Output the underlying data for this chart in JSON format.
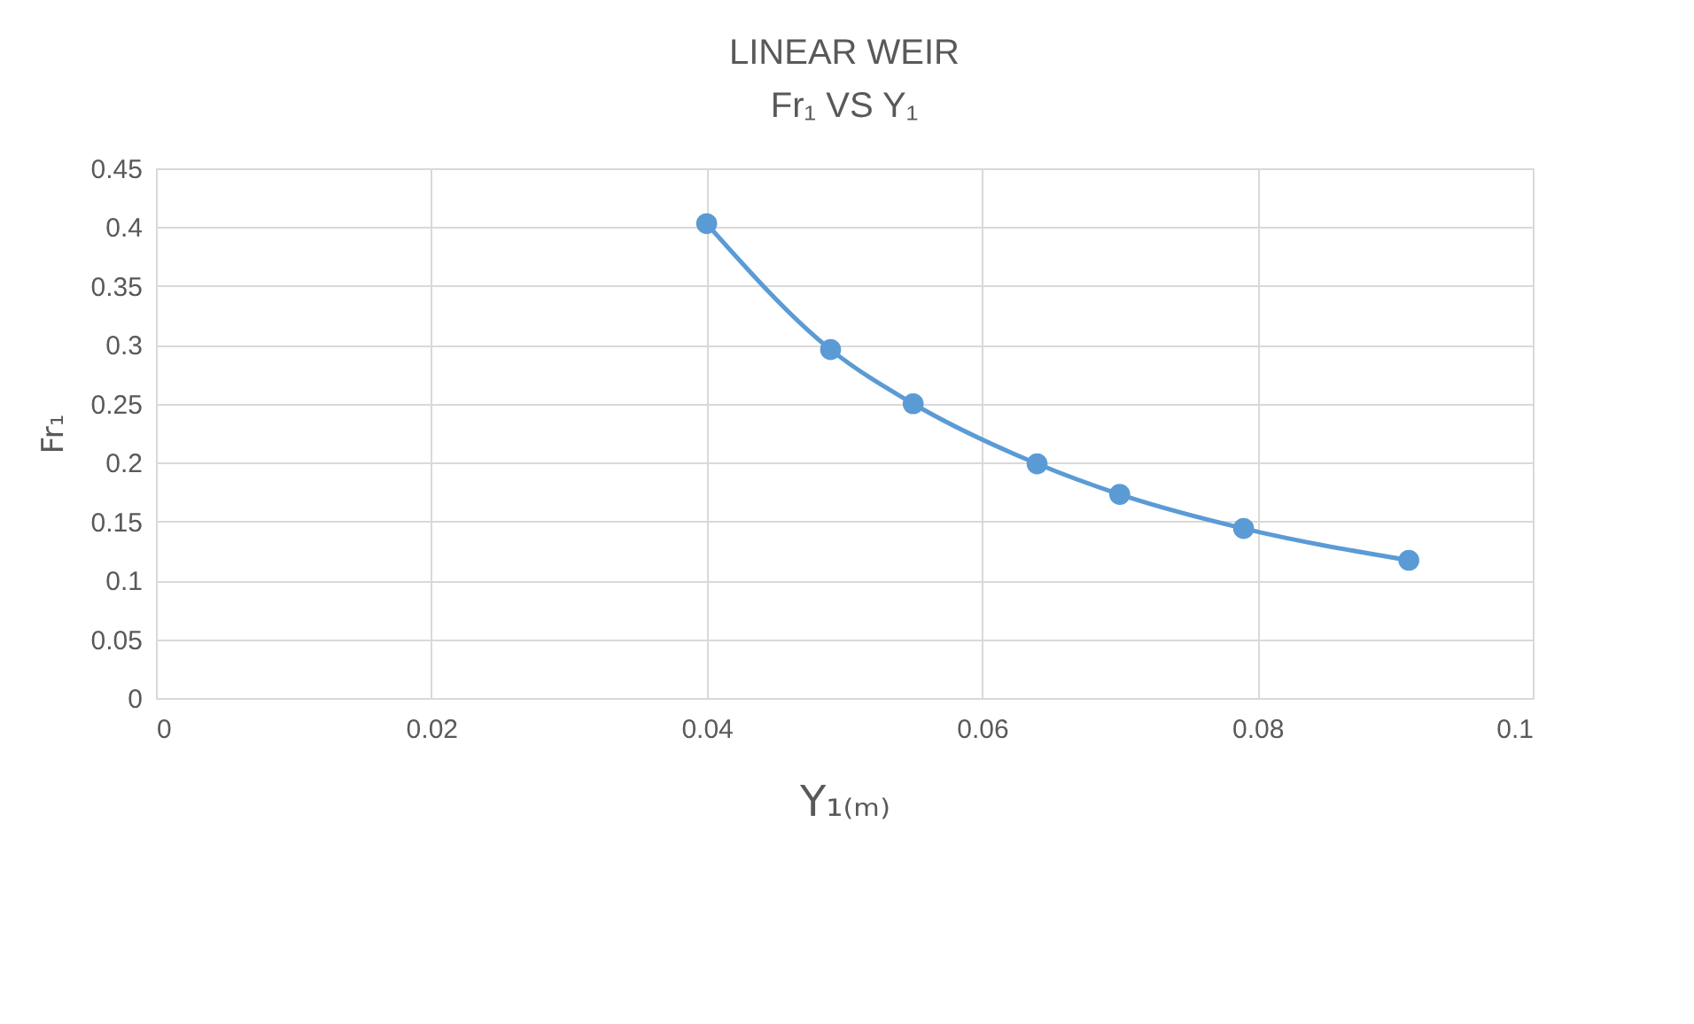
{
  "chart_data": {
    "type": "line",
    "title": [
      "LINEAR WEIR",
      "Fr₁ VS Y₁"
    ],
    "xlabel": "Y₁₍ₘ₎",
    "ylabel": "Fr₁",
    "x": [
      0.04,
      0.049,
      0.055,
      0.064,
      0.07,
      0.079,
      0.091
    ],
    "series": [
      {
        "color": "#5b9bd5",
        "values": [
          0.403,
          0.296,
          0.25,
          0.199,
          0.173,
          0.144,
          0.117
        ]
      }
    ],
    "xlim": [
      0,
      0.1
    ],
    "xticks": [
      0,
      0.02,
      0.04,
      0.06,
      0.08,
      0.1
    ],
    "ylim": [
      0,
      0.45
    ],
    "yticks": [
      0,
      0.05,
      0.1,
      0.15,
      0.2,
      0.25,
      0.3,
      0.35,
      0.4,
      0.45
    ],
    "grid": true,
    "marker": "circle",
    "line_style": "solid"
  }
}
